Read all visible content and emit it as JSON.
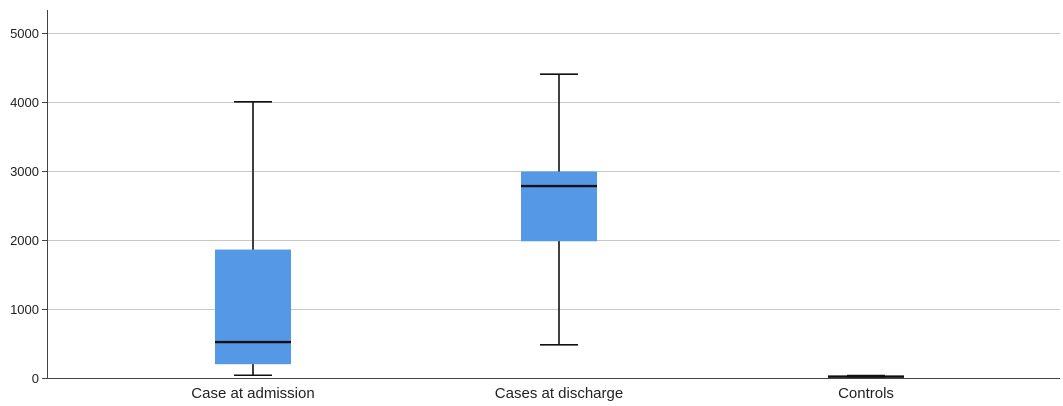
{
  "chart_data": {
    "type": "boxplot",
    "title": "",
    "xlabel": "",
    "ylabel": "",
    "ylim": [
      0,
      5300
    ],
    "y_ticks": [
      0,
      1000,
      2000,
      3000,
      4000,
      5000
    ],
    "grid": "horizontal",
    "legend": "none",
    "categories": [
      "Case at admission",
      "Cases at discharge",
      "Controls"
    ],
    "boxes": [
      {
        "category": "Case at admission",
        "min": 40,
        "q1": 200,
        "median": 520,
        "q3": 1860,
        "max": 4000
      },
      {
        "category": "Cases at discharge",
        "min": 480,
        "q1": 1980,
        "median": 2780,
        "q3": 2990,
        "max": 4400
      },
      {
        "category": "Controls",
        "min": 15,
        "q1": 15,
        "median": 20,
        "q3": 30,
        "max": 35
      }
    ],
    "colors": {
      "box_fill": "#5599e6",
      "line": "#111111",
      "grid": "#c8c8c8"
    }
  }
}
